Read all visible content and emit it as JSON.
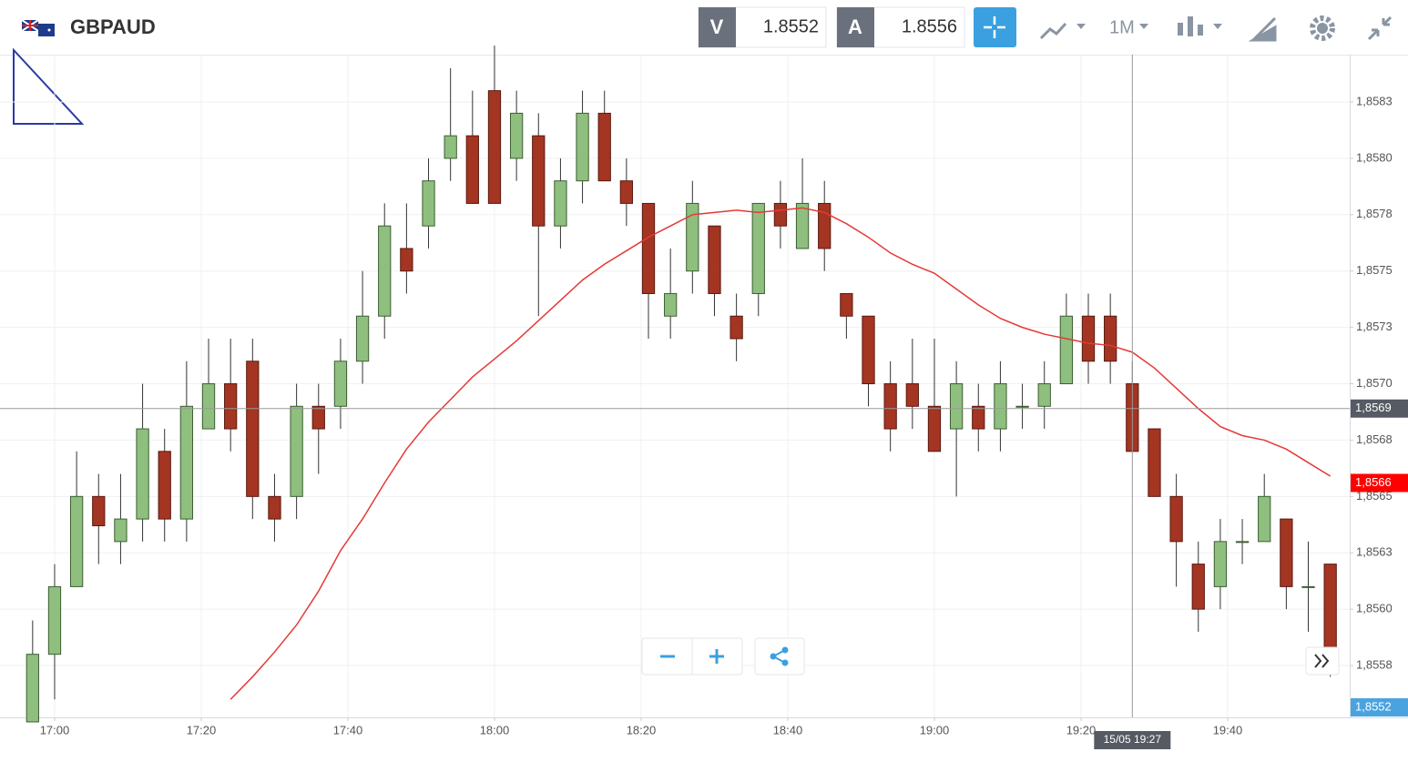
{
  "chart_data": {
    "type": "candlestick",
    "toolbar": {
      "symbol": "GBPAUD",
      "sell_label": "V",
      "sell_price": 1.8552,
      "buy_label": "A",
      "buy_price": 1.8556,
      "timeframe": "1M"
    },
    "xlim": [
      -7.45,
      176.65
    ],
    "xticks": [
      {
        "value": 0,
        "label": "17:00"
      },
      {
        "value": 20,
        "label": "17:20"
      },
      {
        "value": 40,
        "label": "17:40"
      },
      {
        "value": 60,
        "label": "18:00"
      },
      {
        "value": 80,
        "label": "18:20"
      },
      {
        "value": 100,
        "label": "18:40"
      },
      {
        "value": 120,
        "label": "19:00"
      },
      {
        "value": 140,
        "label": "19:20"
      },
      {
        "value": 160,
        "label": "19:40"
      }
    ],
    "ylim": [
      1.85552,
      1.85846
    ],
    "yticks": [
      {
        "value": 1.85575,
        "label": "1,8558"
      },
      {
        "value": 1.856,
        "label": "1,8560"
      },
      {
        "value": 1.85625,
        "label": "1,8563"
      },
      {
        "value": 1.8565,
        "label": "1,8565"
      },
      {
        "value": 1.85675,
        "label": "1,8568"
      },
      {
        "value": 1.857,
        "label": "1,8570"
      },
      {
        "value": 1.85725,
        "label": "1,8573"
      },
      {
        "value": 1.8575,
        "label": "1,8575"
      },
      {
        "value": 1.85775,
        "label": "1,8578"
      },
      {
        "value": 1.858,
        "label": "1,8580"
      },
      {
        "value": 1.85825,
        "label": "1,8583"
      }
    ],
    "grid": true,
    "up_color": "#8ebf7e",
    "down_color": "#a33522",
    "candles": {
      "x": [
        -3,
        0,
        3,
        6,
        9,
        12,
        15,
        18,
        21,
        24,
        27,
        30,
        33,
        36,
        39,
        42,
        45,
        48,
        51,
        54,
        57,
        60,
        63,
        66,
        69,
        72,
        75,
        78,
        81,
        84,
        87,
        90,
        93,
        96,
        99,
        102,
        105,
        108,
        111,
        114,
        117,
        120,
        123,
        126,
        129,
        132,
        135,
        138,
        141,
        144,
        147,
        150,
        153,
        156,
        159,
        162,
        165,
        168,
        171,
        174
      ],
      "open": [
        1.8555,
        1.8558,
        1.8561,
        1.8565,
        1.8563,
        1.8564,
        1.8567,
        1.8564,
        1.8568,
        1.857,
        1.8571,
        1.8565,
        1.8565,
        1.8569,
        1.8569,
        1.8571,
        1.8573,
        1.8576,
        1.8577,
        1.858,
        1.8581,
        1.8583,
        1.858,
        1.8581,
        1.8577,
        1.8579,
        1.8582,
        1.8579,
        1.8578,
        1.8573,
        1.8575,
        1.8577,
        1.8573,
        1.8574,
        1.8578,
        1.8576,
        1.8578,
        1.8574,
        1.8573,
        1.857,
        1.857,
        1.8569,
        1.8568,
        1.8569,
        1.8568,
        1.8569,
        1.8569,
        1.857,
        1.8573,
        1.8573,
        1.857,
        1.8568,
        1.8565,
        1.8562,
        1.8561,
        1.8563,
        1.8563,
        1.8564,
        1.8561,
        1.8562
      ],
      "high": [
        1.85595,
        1.8562,
        1.8567,
        1.8566,
        1.8566,
        1.857,
        1.8568,
        1.8571,
        1.8572,
        1.8572,
        1.8572,
        1.8566,
        1.857,
        1.857,
        1.8572,
        1.8575,
        1.8578,
        1.8578,
        1.858,
        1.8584,
        1.8583,
        1.8585,
        1.8583,
        1.8582,
        1.858,
        1.8583,
        1.8583,
        1.858,
        1.8578,
        1.8576,
        1.8579,
        1.8577,
        1.8574,
        1.8578,
        1.8579,
        1.858,
        1.8579,
        1.8574,
        1.8573,
        1.8571,
        1.8572,
        1.8572,
        1.8571,
        1.857,
        1.8571,
        1.857,
        1.8571,
        1.8574,
        1.8574,
        1.8574,
        1.8571,
        1.8568,
        1.8566,
        1.8563,
        1.8564,
        1.8564,
        1.8566,
        1.8564,
        1.8563,
        1.8562
      ],
      "low": [
        1.8555,
        1.8556,
        1.8562,
        1.8562,
        1.8562,
        1.8563,
        1.8563,
        1.8563,
        1.8568,
        1.8567,
        1.8564,
        1.8563,
        1.8564,
        1.8566,
        1.8568,
        1.857,
        1.8572,
        1.8574,
        1.8576,
        1.8579,
        1.8578,
        1.8578,
        1.8579,
        1.8573,
        1.8576,
        1.8578,
        1.8579,
        1.8577,
        1.8572,
        1.8572,
        1.8574,
        1.8573,
        1.8571,
        1.8573,
        1.8576,
        1.8576,
        1.8575,
        1.8572,
        1.8569,
        1.8567,
        1.8568,
        1.8567,
        1.8565,
        1.8567,
        1.8567,
        1.8568,
        1.8568,
        1.857,
        1.857,
        1.857,
        1.8567,
        1.8565,
        1.8561,
        1.8559,
        1.856,
        1.8562,
        1.8563,
        1.856,
        1.8559,
        1.8557
      ],
      "close": [
        1.8558,
        1.8561,
        1.8565,
        1.85637,
        1.8564,
        1.8568,
        1.8564,
        1.8569,
        1.857,
        1.8568,
        1.8565,
        1.8564,
        1.8569,
        1.8568,
        1.8571,
        1.8573,
        1.8577,
        1.8575,
        1.8579,
        1.8581,
        1.8578,
        1.8578,
        1.8582,
        1.8577,
        1.8579,
        1.8582,
        1.8579,
        1.8578,
        1.8574,
        1.8574,
        1.8578,
        1.8574,
        1.8572,
        1.8578,
        1.8577,
        1.8578,
        1.8576,
        1.8573,
        1.857,
        1.8568,
        1.8569,
        1.8567,
        1.857,
        1.8568,
        1.857,
        1.8569,
        1.857,
        1.8573,
        1.8571,
        1.8571,
        1.8567,
        1.8565,
        1.8563,
        1.856,
        1.8563,
        1.8563,
        1.8565,
        1.8561,
        1.8561,
        1.8558
      ]
    },
    "moving_average": {
      "color": "#e53935",
      "values": [
        null,
        null,
        null,
        null,
        null,
        null,
        null,
        null,
        null,
        1.8556,
        1.8557,
        1.85581,
        1.85593,
        1.85608,
        1.85626,
        1.8564,
        1.85656,
        1.85671,
        1.85683,
        1.85693,
        1.85703,
        1.85711,
        1.85719,
        1.85728,
        1.85737,
        1.85746,
        1.85753,
        1.85759,
        1.85765,
        1.8577,
        1.85775,
        1.85776,
        1.85777,
        1.85776,
        1.85777,
        1.85778,
        1.85776,
        1.85771,
        1.85765,
        1.85758,
        1.85753,
        1.85749,
        1.85742,
        1.85735,
        1.85729,
        1.85725,
        1.85722,
        1.8572,
        1.85718,
        1.85717,
        1.85714,
        1.85707,
        1.85698,
        1.85689,
        1.85681,
        1.85677,
        1.85675,
        1.85671,
        1.85665,
        1.85659
      ]
    },
    "crosshair": {
      "x": 147,
      "x_label": "15/05 19:27",
      "y": 1.85689,
      "y_label": "1,8569"
    },
    "price_line": {
      "value": 1.85656,
      "label": "1,8566",
      "color": "#ff0000"
    },
    "bid_label": "1,8552"
  }
}
